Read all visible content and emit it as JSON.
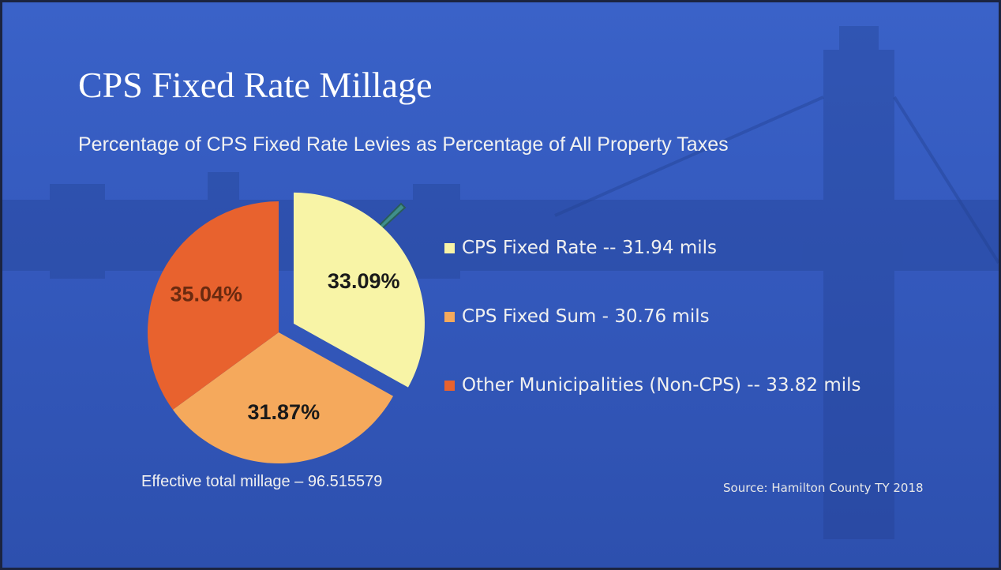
{
  "chart_data": {
    "type": "pie",
    "title": "CPS Fixed Rate Millage",
    "subtitle": "Percentage of CPS Fixed Rate Levies as Percentage of All Property Taxes",
    "categories": [
      "CPS Fixed Rate  -- 31.94 mils",
      "CPS Fixed Sum - 30.76 mils",
      "Other Municipalities (Non-CPS) -- 33.82 mils"
    ],
    "values": [
      33.09,
      31.87,
      35.04
    ],
    "value_labels": [
      "33.09%",
      "31.87%",
      "35.04%"
    ],
    "colors": [
      "#f8f4a6",
      "#f5a95c",
      "#e8622e"
    ],
    "annotations": [
      "Effective total millage – 96.515579",
      "Source: Hamilton County TY 2018"
    ]
  }
}
